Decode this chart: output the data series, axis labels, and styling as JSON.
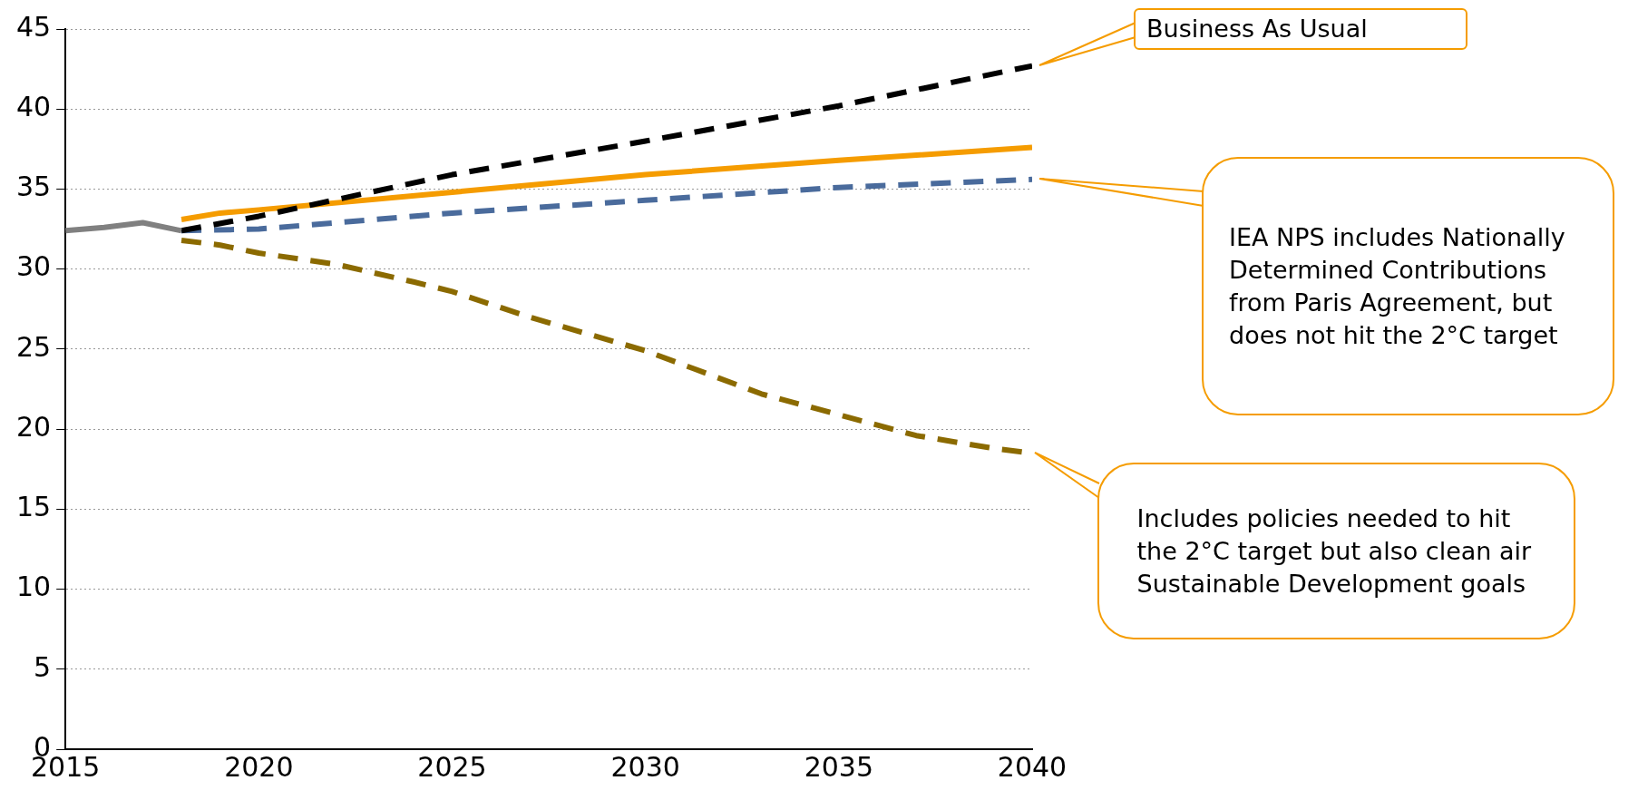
{
  "chart_data": {
    "type": "line",
    "marker": "none",
    "grid": "y",
    "legend": false,
    "xlim": [
      2015,
      2040
    ],
    "xticks": [
      2015,
      2020,
      2025,
      2030,
      2035,
      2040
    ],
    "ylim": [
      0,
      45
    ],
    "yticks": [
      0,
      5,
      10,
      15,
      20,
      25,
      30,
      35,
      40,
      45
    ],
    "series": [
      {
        "color": "#808080",
        "line_style": "solid",
        "x": [
          2015,
          2016,
          2017,
          2018
        ],
        "values": [
          32.4,
          32.6,
          32.9,
          32.4
        ]
      },
      {
        "color": "#000000",
        "line_style": "dashed",
        "x": [
          2018,
          2020,
          2025,
          2030,
          2035,
          2040
        ],
        "values": [
          32.4,
          33.3,
          35.9,
          38.0,
          40.2,
          42.7
        ]
      },
      {
        "color": "#f59c00",
        "line_style": "solid",
        "x": [
          2018,
          2019,
          2020,
          2025,
          2030,
          2035,
          2040
        ],
        "values": [
          33.1,
          33.5,
          33.7,
          34.8,
          35.9,
          36.8,
          37.6
        ]
      },
      {
        "color": "#4a6b9c",
        "line_style": "dashed",
        "x": [
          2018,
          2020,
          2025,
          2030,
          2035,
          2040
        ],
        "values": [
          32.4,
          32.5,
          33.5,
          34.3,
          35.1,
          35.6
        ]
      },
      {
        "color": "#8b6a00",
        "line_style": "dashed",
        "x": [
          2018,
          2019,
          2020,
          2022,
          2024,
          2025,
          2027,
          2030,
          2033,
          2035,
          2037,
          2039,
          2040
        ],
        "values": [
          31.8,
          31.5,
          31.0,
          30.3,
          29.2,
          28.6,
          27.0,
          24.9,
          22.2,
          20.9,
          19.6,
          18.8,
          18.5
        ]
      }
    ],
    "annotations": [
      "Business As Usual",
      "IEA NPS includes Nationally Determined Contributions from Paris Agreement, but does not hit the 2°C target",
      "Includes policies needed to hit the 2°C target but also clean air Sustainable Development goals"
    ]
  }
}
